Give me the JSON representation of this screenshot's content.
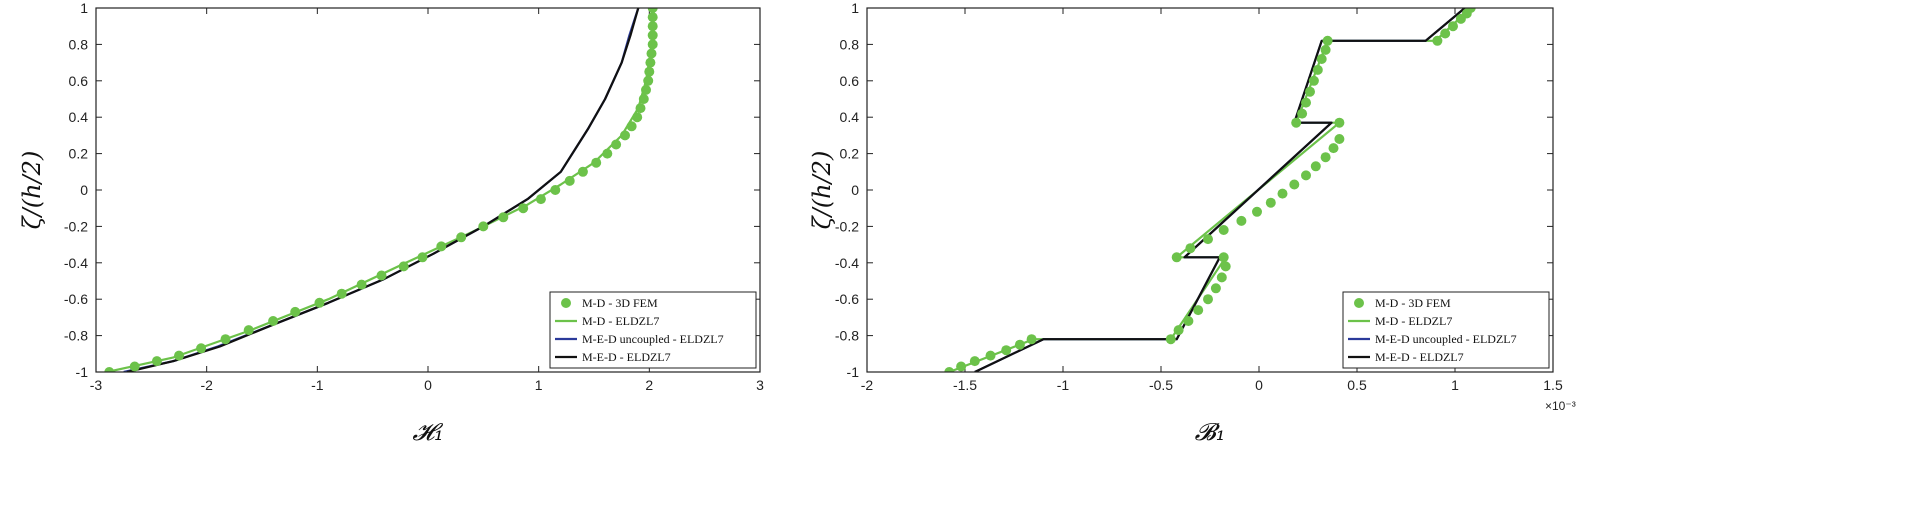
{
  "chart_data": [
    {
      "type": "line",
      "xlabel": "𝓗₁",
      "ylabel": "ζ/(h/2)",
      "xlim": [
        -3,
        3
      ],
      "ylim": [
        -1,
        1
      ],
      "xticks": [
        -3,
        -2,
        -1,
        0,
        1,
        2,
        3
      ],
      "yticks": [
        -1,
        -0.8,
        -0.6,
        -0.4,
        -0.2,
        0,
        0.2,
        0.4,
        0.6,
        0.8,
        1
      ],
      "legend_position": "bottom-right",
      "series": [
        {
          "name": "M-D - 3D FEM",
          "style": "markers",
          "color": "#6cc24a",
          "points": [
            [
              -2.88,
              -1.0
            ],
            [
              -2.65,
              -0.97
            ],
            [
              -2.45,
              -0.94
            ],
            [
              -2.25,
              -0.91
            ],
            [
              -2.05,
              -0.87
            ],
            [
              -1.83,
              -0.82
            ],
            [
              -1.62,
              -0.77
            ],
            [
              -1.4,
              -0.72
            ],
            [
              -1.2,
              -0.67
            ],
            [
              -0.98,
              -0.62
            ],
            [
              -0.78,
              -0.57
            ],
            [
              -0.6,
              -0.52
            ],
            [
              -0.42,
              -0.47
            ],
            [
              -0.22,
              -0.42
            ],
            [
              -0.05,
              -0.37
            ],
            [
              0.12,
              -0.31
            ],
            [
              0.3,
              -0.26
            ],
            [
              0.5,
              -0.2
            ],
            [
              0.68,
              -0.15
            ],
            [
              0.86,
              -0.1
            ],
            [
              1.02,
              -0.05
            ],
            [
              1.15,
              0.0
            ],
            [
              1.28,
              0.05
            ],
            [
              1.4,
              0.1
            ],
            [
              1.52,
              0.15
            ],
            [
              1.62,
              0.2
            ],
            [
              1.7,
              0.25
            ],
            [
              1.78,
              0.3
            ],
            [
              1.84,
              0.35
            ],
            [
              1.89,
              0.4
            ],
            [
              1.92,
              0.45
            ],
            [
              1.95,
              0.5
            ],
            [
              1.97,
              0.55
            ],
            [
              1.99,
              0.6
            ],
            [
              2.0,
              0.65
            ],
            [
              2.01,
              0.7
            ],
            [
              2.02,
              0.75
            ],
            [
              2.03,
              0.8
            ],
            [
              2.03,
              0.85
            ],
            [
              2.03,
              0.9
            ],
            [
              2.03,
              0.95
            ],
            [
              2.03,
              1.0
            ]
          ]
        },
        {
          "name": "M-D - ELDZL7",
          "style": "line",
          "color": "#6cc24a",
          "points": [
            [
              -2.9,
              -1.0
            ],
            [
              -2.3,
              -0.92
            ],
            [
              -1.6,
              -0.77
            ],
            [
              -0.9,
              -0.6
            ],
            [
              -0.2,
              -0.4
            ],
            [
              0.4,
              -0.23
            ],
            [
              0.9,
              -0.08
            ],
            [
              1.2,
              0.03
            ],
            [
              1.5,
              0.15
            ],
            [
              1.75,
              0.3
            ],
            [
              1.9,
              0.45
            ],
            [
              1.97,
              0.6
            ],
            [
              2.01,
              0.75
            ],
            [
              2.03,
              0.88
            ],
            [
              2.03,
              1.0
            ]
          ]
        },
        {
          "name": "M-E-D uncoupled - ELDZL7",
          "style": "line",
          "color": "#2b3a9a",
          "points": [
            [
              -2.75,
              -1.0
            ],
            [
              -2.3,
              -0.94
            ],
            [
              -1.9,
              -0.86
            ],
            [
              -1.4,
              -0.74
            ],
            [
              -0.9,
              -0.62
            ],
            [
              -0.4,
              -0.49
            ],
            [
              0.05,
              -0.35
            ],
            [
              0.5,
              -0.2
            ],
            [
              0.9,
              -0.05
            ],
            [
              1.2,
              0.1
            ],
            [
              1.45,
              0.34
            ],
            [
              1.6,
              0.5
            ],
            [
              1.75,
              0.7
            ],
            [
              1.82,
              0.85
            ],
            [
              1.9,
              1.0
            ]
          ]
        },
        {
          "name": "M-E-D - ELDZL7",
          "style": "line",
          "color": "#111111",
          "points": [
            [
              -2.72,
              -1.0
            ],
            [
              -2.3,
              -0.94
            ],
            [
              -1.88,
              -0.86
            ],
            [
              -1.4,
              -0.74
            ],
            [
              -0.9,
              -0.62
            ],
            [
              -0.4,
              -0.49
            ],
            [
              0.05,
              -0.35
            ],
            [
              0.5,
              -0.2
            ],
            [
              0.9,
              -0.05
            ],
            [
              1.2,
              0.1
            ],
            [
              1.45,
              0.34
            ],
            [
              1.6,
              0.5
            ],
            [
              1.75,
              0.7
            ],
            [
              1.83,
              0.85
            ],
            [
              1.9,
              1.0
            ]
          ]
        }
      ]
    },
    {
      "type": "line",
      "xlabel": "𝓑₁",
      "ylabel": "ζ/(h/2)",
      "xlim": [
        -2,
        1.5
      ],
      "ylim": [
        -1,
        1
      ],
      "xticks": [
        -2,
        -1.5,
        -1,
        -0.5,
        0,
        0.5,
        1,
        1.5
      ],
      "yticks": [
        -1,
        -0.8,
        -0.6,
        -0.4,
        -0.2,
        0,
        0.2,
        0.4,
        0.6,
        0.8,
        1
      ],
      "x_exponent_label": "×10⁻³",
      "legend_position": "bottom-right",
      "series": [
        {
          "name": "M-D - 3D FEM",
          "style": "markers",
          "color": "#6cc24a",
          "points": [
            [
              -1.58,
              -1.0
            ],
            [
              -1.52,
              -0.97
            ],
            [
              -1.45,
              -0.94
            ],
            [
              -1.37,
              -0.91
            ],
            [
              -1.29,
              -0.88
            ],
            [
              -1.22,
              -0.85
            ],
            [
              -1.16,
              -0.82
            ],
            [
              -0.45,
              -0.82
            ],
            [
              -0.41,
              -0.77
            ],
            [
              -0.36,
              -0.72
            ],
            [
              -0.31,
              -0.66
            ],
            [
              -0.26,
              -0.6
            ],
            [
              -0.22,
              -0.54
            ],
            [
              -0.19,
              -0.48
            ],
            [
              -0.17,
              -0.42
            ],
            [
              -0.18,
              -0.37
            ],
            [
              -0.42,
              -0.37
            ],
            [
              -0.35,
              -0.32
            ],
            [
              -0.26,
              -0.27
            ],
            [
              -0.18,
              -0.22
            ],
            [
              -0.09,
              -0.17
            ],
            [
              -0.01,
              -0.12
            ],
            [
              0.06,
              -0.07
            ],
            [
              0.12,
              -0.02
            ],
            [
              0.18,
              0.03
            ],
            [
              0.24,
              0.08
            ],
            [
              0.29,
              0.13
            ],
            [
              0.34,
              0.18
            ],
            [
              0.38,
              0.23
            ],
            [
              0.41,
              0.28
            ],
            [
              0.41,
              0.37
            ],
            [
              0.19,
              0.37
            ],
            [
              0.22,
              0.42
            ],
            [
              0.24,
              0.48
            ],
            [
              0.26,
              0.54
            ],
            [
              0.28,
              0.6
            ],
            [
              0.3,
              0.66
            ],
            [
              0.32,
              0.72
            ],
            [
              0.34,
              0.77
            ],
            [
              0.35,
              0.82
            ],
            [
              0.91,
              0.82
            ],
            [
              0.95,
              0.86
            ],
            [
              0.99,
              0.9
            ],
            [
              1.03,
              0.94
            ],
            [
              1.06,
              0.97
            ],
            [
              1.08,
              1.0
            ]
          ]
        },
        {
          "name": "M-D - ELDZL7",
          "style": "line",
          "color": "#6cc24a",
          "points": [
            [
              -1.58,
              -1.0
            ],
            [
              -1.15,
              -0.82
            ],
            [
              -0.45,
              -0.82
            ],
            [
              -0.17,
              -0.37
            ],
            [
              -0.42,
              -0.37
            ],
            [
              0.41,
              0.37
            ],
            [
              0.19,
              0.37
            ],
            [
              0.35,
              0.82
            ],
            [
              0.9,
              0.82
            ],
            [
              1.08,
              1.0
            ]
          ]
        },
        {
          "name": "M-E-D uncoupled - ELDZL7",
          "style": "line",
          "color": "#2b3a9a",
          "points": [
            [
              -1.45,
              -1.0
            ],
            [
              -1.1,
              -0.82
            ],
            [
              -0.42,
              -0.82
            ],
            [
              -0.2,
              -0.37
            ],
            [
              -0.38,
              -0.37
            ],
            [
              0.37,
              0.37
            ],
            [
              0.18,
              0.37
            ],
            [
              0.32,
              0.82
            ],
            [
              0.85,
              0.82
            ],
            [
              1.05,
              1.0
            ]
          ]
        },
        {
          "name": "M-E-D - ELDZL7",
          "style": "line",
          "color": "#111111",
          "points": [
            [
              -1.45,
              -1.0
            ],
            [
              -1.1,
              -0.82
            ],
            [
              -0.42,
              -0.82
            ],
            [
              -0.2,
              -0.37
            ],
            [
              -0.38,
              -0.37
            ],
            [
              0.37,
              0.37
            ],
            [
              0.18,
              0.37
            ],
            [
              0.32,
              0.82
            ],
            [
              0.85,
              0.82
            ],
            [
              1.05,
              1.0
            ]
          ]
        }
      ]
    }
  ]
}
